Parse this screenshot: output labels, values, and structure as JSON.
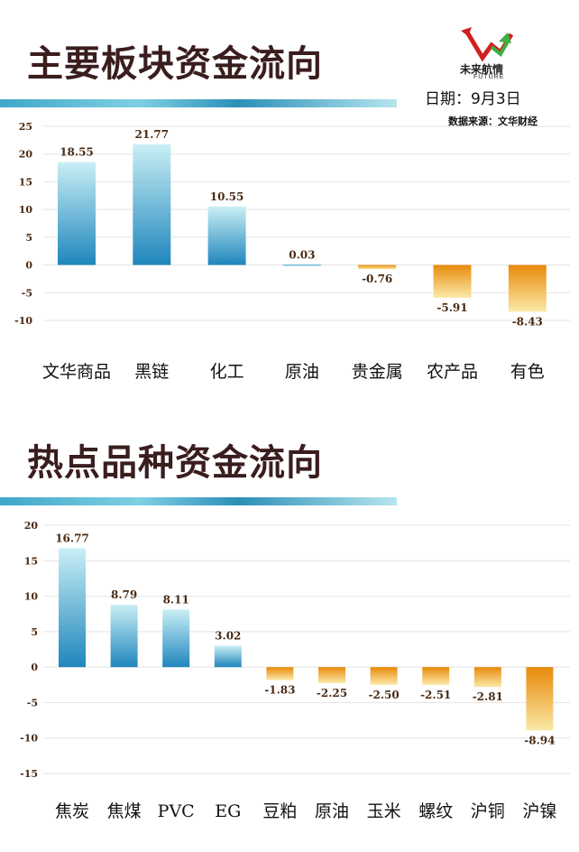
{
  "header": {
    "title1": "主要板块资金流向",
    "title2": "热点品种资金流向",
    "logo_name": "未来航情",
    "logo_sub": "FUTURE",
    "date": "日期：9月3日",
    "source": "数据来源：文华财经"
  },
  "colors": {
    "positive_top": "#c9eff5",
    "positive_bottom": "#1f86bc",
    "negative_top": "#e88a0a",
    "negative_bottom": "#fbe9a8",
    "label": "#4a2a12",
    "title": "#3a1d1d"
  },
  "chart_data": [
    {
      "type": "bar",
      "title": "主要板块资金流向",
      "categories": [
        "文华商品",
        "黑链",
        "化工",
        "原油",
        "贵金属",
        "农产品",
        "有色"
      ],
      "values": [
        18.55,
        21.77,
        10.55,
        0.03,
        -0.76,
        -5.91,
        -8.43
      ],
      "value_labels": [
        "18.55",
        "21.77",
        "10.55",
        "0.03",
        "-0.76",
        "-5.91",
        "-8.43"
      ],
      "ylim": [
        -10,
        25
      ],
      "yticks": [
        25,
        20,
        15,
        10,
        5,
        0,
        -5,
        -10
      ],
      "grid": true
    },
    {
      "type": "bar",
      "title": "热点品种资金流向",
      "categories": [
        "焦炭",
        "焦煤",
        "PVC",
        "EG",
        "豆粕",
        "原油",
        "玉米",
        "螺纹",
        "沪铜",
        "沪镍"
      ],
      "values": [
        16.77,
        8.79,
        8.11,
        3.02,
        -1.83,
        -2.25,
        -2.5,
        -2.51,
        -2.81,
        -8.94
      ],
      "value_labels": [
        "16.77",
        "8.79",
        "8.11",
        "3.02",
        "-1.83",
        "-2.25",
        "-2.50",
        "-2.51",
        "-2.81",
        "-8.94"
      ],
      "ylim": [
        -15,
        20
      ],
      "yticks": [
        20,
        15,
        10,
        5,
        0,
        -5,
        -10,
        -15
      ],
      "grid": true
    }
  ]
}
